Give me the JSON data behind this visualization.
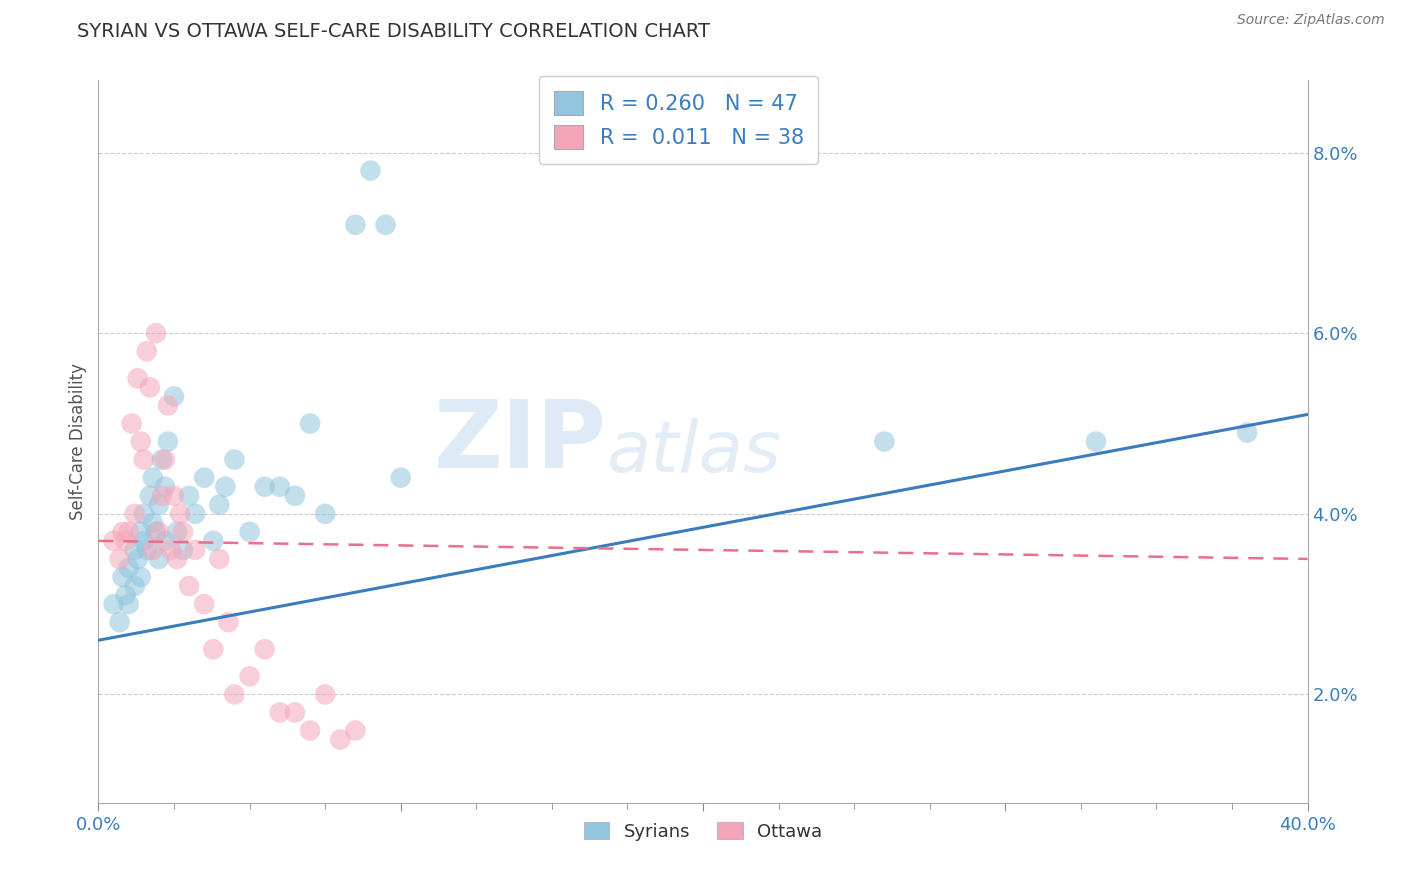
{
  "title": "SYRIAN VS OTTAWA SELF-CARE DISABILITY CORRELATION CHART",
  "source": "Source: ZipAtlas.com",
  "ylabel": "Self-Care Disability",
  "xlim": [
    0.0,
    0.4
  ],
  "ylim": [
    0.008,
    0.088
  ],
  "xticks": [
    0.0,
    0.1,
    0.2,
    0.3,
    0.4
  ],
  "xtick_labels_shown": [
    "0.0%",
    "",
    "",
    "",
    "40.0%"
  ],
  "yticks": [
    0.02,
    0.04,
    0.06,
    0.08
  ],
  "ytick_labels": [
    "2.0%",
    "4.0%",
    "6.0%",
    "8.0%"
  ],
  "blue_R": 0.26,
  "blue_N": 47,
  "pink_R": 0.011,
  "pink_N": 38,
  "blue_color": "#92c5de",
  "pink_color": "#f4a6b8",
  "blue_line_color": "#3a7dbf",
  "pink_line_color": "#e8708a",
  "watermark_zip": "ZIP",
  "watermark_atlas": "atlas",
  "legend_label_blue": "Syrians",
  "legend_label_pink": "Ottawa",
  "blue_scatter_x": [
    0.005,
    0.007,
    0.008,
    0.009,
    0.01,
    0.01,
    0.012,
    0.012,
    0.013,
    0.014,
    0.014,
    0.015,
    0.015,
    0.016,
    0.017,
    0.018,
    0.018,
    0.019,
    0.02,
    0.02,
    0.021,
    0.022,
    0.022,
    0.023,
    0.025,
    0.026,
    0.028,
    0.03,
    0.032,
    0.035,
    0.038,
    0.04,
    0.042,
    0.045,
    0.05,
    0.055,
    0.06,
    0.065,
    0.07,
    0.075,
    0.085,
    0.09,
    0.095,
    0.1,
    0.26,
    0.33,
    0.38
  ],
  "blue_scatter_y": [
    0.03,
    0.028,
    0.033,
    0.031,
    0.03,
    0.034,
    0.032,
    0.036,
    0.035,
    0.033,
    0.038,
    0.037,
    0.04,
    0.036,
    0.042,
    0.039,
    0.044,
    0.038,
    0.041,
    0.035,
    0.046,
    0.043,
    0.037,
    0.048,
    0.053,
    0.038,
    0.036,
    0.042,
    0.04,
    0.044,
    0.037,
    0.041,
    0.043,
    0.046,
    0.038,
    0.043,
    0.043,
    0.042,
    0.05,
    0.04,
    0.072,
    0.078,
    0.072,
    0.044,
    0.048,
    0.048,
    0.049
  ],
  "pink_scatter_x": [
    0.005,
    0.007,
    0.008,
    0.009,
    0.01,
    0.011,
    0.012,
    0.013,
    0.014,
    0.015,
    0.016,
    0.017,
    0.018,
    0.019,
    0.02,
    0.021,
    0.022,
    0.023,
    0.024,
    0.025,
    0.026,
    0.027,
    0.028,
    0.03,
    0.032,
    0.035,
    0.038,
    0.04,
    0.043,
    0.045,
    0.05,
    0.055,
    0.06,
    0.065,
    0.07,
    0.075,
    0.08,
    0.085
  ],
  "pink_scatter_y": [
    0.037,
    0.035,
    0.038,
    0.037,
    0.038,
    0.05,
    0.04,
    0.055,
    0.048,
    0.046,
    0.058,
    0.054,
    0.036,
    0.06,
    0.038,
    0.042,
    0.046,
    0.052,
    0.036,
    0.042,
    0.035,
    0.04,
    0.038,
    0.032,
    0.036,
    0.03,
    0.025,
    0.035,
    0.028,
    0.02,
    0.022,
    0.025,
    0.018,
    0.018,
    0.016,
    0.02,
    0.015,
    0.016
  ],
  "blue_line_x0": 0.0,
  "blue_line_y0": 0.026,
  "blue_line_x1": 0.4,
  "blue_line_y1": 0.051,
  "pink_line_x0": 0.0,
  "pink_line_y0": 0.037,
  "pink_line_x1": 0.4,
  "pink_line_y1": 0.035
}
